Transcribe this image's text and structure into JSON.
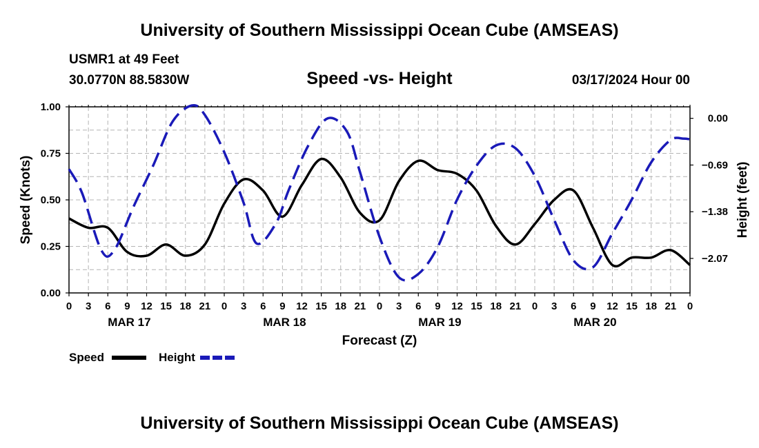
{
  "header": {
    "title": "University of Southern Mississippi Ocean Cube (AMSEAS)",
    "station": "USMR1 at 49 Feet",
    "coords": "30.0770N  88.5830W",
    "subtitle": "Speed -vs- Height",
    "datetime": "03/17/2024 Hour 00"
  },
  "footer": {
    "title": "University of Southern Mississippi Ocean Cube (AMSEAS)"
  },
  "legend": {
    "speed_label": "Speed",
    "height_label": "Height"
  },
  "colors": {
    "speed": "#000000",
    "height": "#1a1ab8",
    "grid": "#b4b4b4"
  },
  "chart_data": {
    "type": "line",
    "title": "Speed -vs- Height",
    "xlabel": "Forecast (Z)",
    "ylabel_left": "Speed (Knots)",
    "ylabel_right": "Height (feet)",
    "x_unit": "hours since 03/17 00Z",
    "xlim": [
      0,
      96
    ],
    "ylim_left": [
      0,
      1.0
    ],
    "ylim_right": [
      -2.58,
      0.17
    ],
    "x_tick_hours": [
      0,
      3,
      6,
      9,
      12,
      15,
      18,
      21,
      24,
      27,
      30,
      33,
      36,
      39,
      42,
      45,
      48,
      51,
      54,
      57,
      60,
      63,
      66,
      69,
      72,
      75,
      78,
      81,
      84,
      87,
      90,
      93,
      96
    ],
    "x_tick_labels": [
      "0",
      "3",
      "6",
      "9",
      "12",
      "15",
      "18",
      "21",
      "0",
      "3",
      "6",
      "9",
      "12",
      "15",
      "18",
      "21",
      "0",
      "3",
      "6",
      "9",
      "12",
      "15",
      "18",
      "21",
      "0",
      "3",
      "6",
      "9",
      "12",
      "15",
      "18",
      "21",
      "0"
    ],
    "day_labels": [
      {
        "label": "MAR 17",
        "hour": 9
      },
      {
        "label": "MAR 18",
        "hour": 33
      },
      {
        "label": "MAR 19",
        "hour": 57
      },
      {
        "label": "MAR 20",
        "hour": 81
      }
    ],
    "left_ticks": [
      0.0,
      0.25,
      0.5,
      0.75,
      1.0
    ],
    "left_tick_labels": [
      "0.00",
      "0.25",
      "0.50",
      "0.75",
      "1.00"
    ],
    "right_ticks": [
      0.0,
      -0.69,
      -1.38,
      -2.07
    ],
    "right_tick_labels": [
      "0.00",
      "−0.69",
      "−1.38",
      "−2.07"
    ],
    "series": [
      {
        "name": "Speed",
        "axis": "left",
        "style": "solid",
        "x": [
          0,
          3,
          6,
          9,
          12,
          15,
          18,
          21,
          24,
          27,
          30,
          33,
          36,
          39,
          42,
          45,
          48,
          51,
          54,
          57,
          60,
          63,
          66,
          69,
          72,
          75,
          78,
          81,
          84,
          87,
          90,
          93,
          96
        ],
        "values": [
          0.4,
          0.35,
          0.35,
          0.22,
          0.2,
          0.26,
          0.2,
          0.26,
          0.48,
          0.61,
          0.55,
          0.41,
          0.58,
          0.72,
          0.62,
          0.43,
          0.39,
          0.6,
          0.71,
          0.66,
          0.64,
          0.55,
          0.36,
          0.26,
          0.37,
          0.5,
          0.55,
          0.35,
          0.15,
          0.19,
          0.19,
          0.23,
          0.15
        ]
      },
      {
        "name": "Height",
        "axis": "right",
        "style": "dashed",
        "x": [
          0,
          2,
          5,
          7,
          10,
          13,
          16,
          19,
          21,
          24,
          27,
          29,
          32,
          34,
          37,
          40,
          43,
          45,
          48,
          51,
          54,
          57,
          60,
          63,
          66,
          69,
          72,
          75,
          78,
          81,
          84,
          87,
          90,
          93,
          95,
          96
        ],
        "values": [
          -0.75,
          -1.1,
          -1.95,
          -1.95,
          -1.3,
          -0.7,
          -0.05,
          0.19,
          0.05,
          -0.5,
          -1.25,
          -1.85,
          -1.55,
          -1.05,
          -0.4,
          0.0,
          -0.2,
          -0.8,
          -1.75,
          -2.35,
          -2.3,
          -1.9,
          -1.2,
          -0.7,
          -0.4,
          -0.44,
          -0.85,
          -1.5,
          -2.1,
          -2.2,
          -1.7,
          -1.2,
          -0.65,
          -0.32,
          -0.3,
          -0.31
        ]
      }
    ]
  }
}
